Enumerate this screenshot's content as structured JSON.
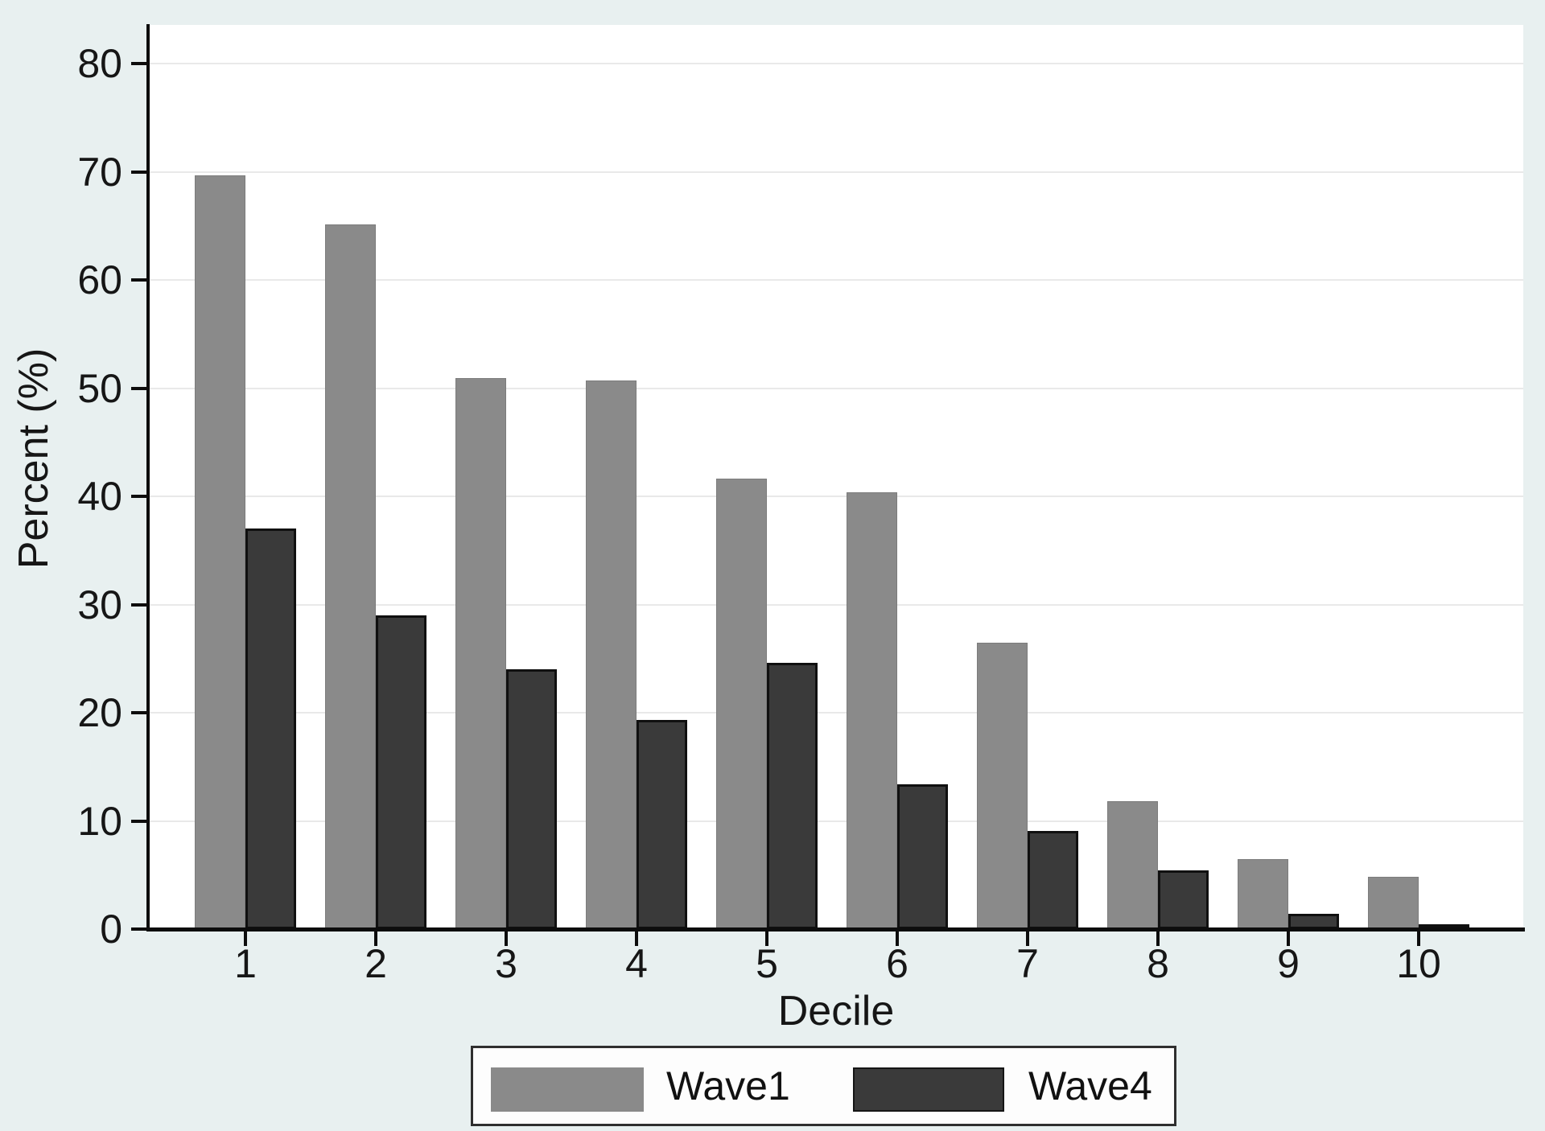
{
  "chart_data": {
    "type": "bar",
    "title": "",
    "xlabel": "Decile",
    "ylabel": "Percent (%)",
    "categories": [
      "1",
      "2",
      "3",
      "4",
      "5",
      "6",
      "7",
      "8",
      "9",
      "10"
    ],
    "series": [
      {
        "name": "Wave1",
        "color": "#8a8a8a",
        "values": [
          69.7,
          65.1,
          50.9,
          50.7,
          41.6,
          40.4,
          26.5,
          11.8,
          6.5,
          4.8
        ]
      },
      {
        "name": "Wave4",
        "color": "#3a3a3a",
        "values": [
          37.0,
          29.0,
          24.0,
          19.3,
          24.6,
          13.4,
          9.1,
          5.4,
          1.4,
          0.4
        ]
      }
    ],
    "ylim": [
      0,
      83.5
    ],
    "yticks": [
      0,
      10,
      20,
      30,
      40,
      50,
      60,
      70,
      80
    ],
    "grid": true,
    "legend_position": "bottom"
  },
  "legend": {
    "items": [
      {
        "label": "Wave1",
        "color": "#8a8a8a"
      },
      {
        "label": "Wave4",
        "color": "#3a3a3a"
      }
    ]
  },
  "colors": {
    "figure_background": "#e8f0f0",
    "plot_background": "#ffffff",
    "gridline": "#e9e9e9",
    "axis": "#0d0d0d",
    "text": "#161616",
    "wave1_bar": "#8a8a8a",
    "wave4_bar": "#3a3a3a"
  }
}
